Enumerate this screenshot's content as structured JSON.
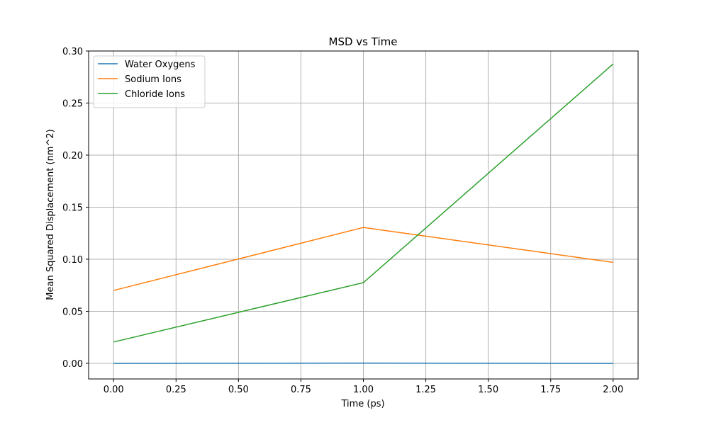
{
  "chart_data": {
    "type": "line",
    "title": "MSD vs Time",
    "xlabel": "Time (ps)",
    "ylabel": "Mean Squared Displacement (nm^2)",
    "xlim": [
      -0.1,
      2.1
    ],
    "ylim": [
      -0.015,
      0.3
    ],
    "x_ticks": [
      0.0,
      0.25,
      0.5,
      0.75,
      1.0,
      1.25,
      1.5,
      1.75,
      2.0
    ],
    "x_tick_labels": [
      "0.00",
      "0.25",
      "0.50",
      "0.75",
      "1.00",
      "1.25",
      "1.50",
      "1.75",
      "2.00"
    ],
    "y_ticks": [
      0.0,
      0.05,
      0.1,
      0.15,
      0.2,
      0.25,
      0.3
    ],
    "y_tick_labels": [
      "0.00",
      "0.05",
      "0.10",
      "0.15",
      "0.20",
      "0.25",
      "0.30"
    ],
    "grid": true,
    "legend_position": "top-left",
    "x": [
      0.0,
      1.0,
      2.0
    ],
    "series": [
      {
        "name": "Water Oxygens",
        "color": "#1f77b4",
        "values": [
          0.0,
          0.0002,
          0.0
        ]
      },
      {
        "name": "Sodium Ions",
        "color": "#ff7f0e",
        "values": [
          0.07,
          0.1305,
          0.097
        ]
      },
      {
        "name": "Chloride Ions",
        "color": "#2ca02c",
        "values": [
          0.0205,
          0.0775,
          0.2875
        ]
      }
    ]
  }
}
